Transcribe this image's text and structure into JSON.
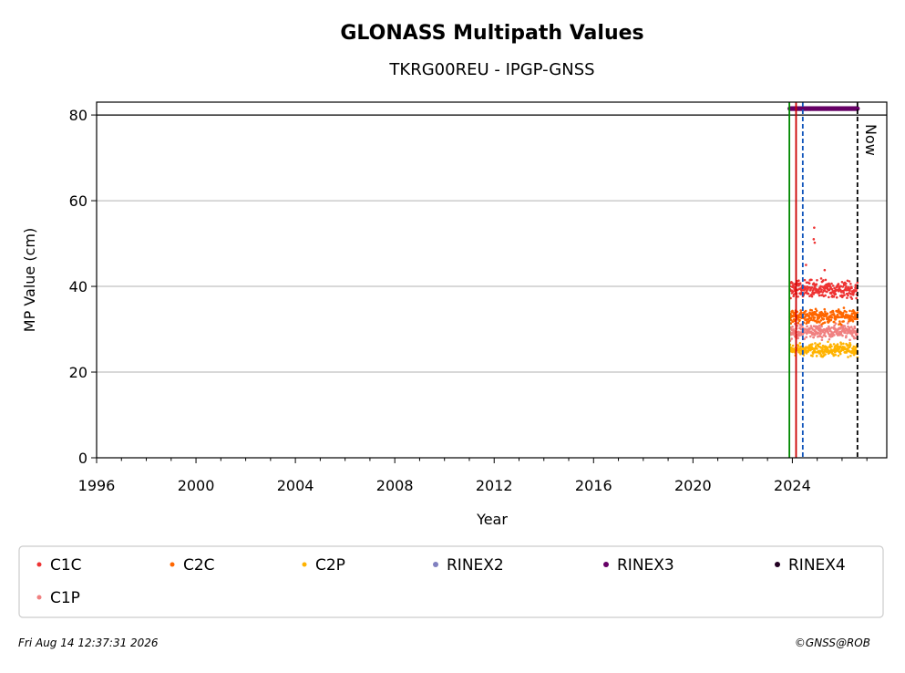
{
  "chart_data": {
    "type": "scatter",
    "title": "GLONASS Multipath Values",
    "subtitle": "TKRG00REU - IPGP-GNSS",
    "xlabel": "Year",
    "ylabel": "MP Value (cm)",
    "xlim": [
      1996,
      2027.8
    ],
    "ylim": [
      0,
      83
    ],
    "xticks": [
      "1996",
      "2000",
      "2004",
      "2008",
      "2012",
      "2016",
      "2020",
      "2024"
    ],
    "yticks": [
      "0",
      "20",
      "40",
      "60",
      "80"
    ],
    "grid": "horizontal",
    "date_range": [
      2023.9,
      2026.62
    ],
    "series": [
      {
        "name": "C1C",
        "color": "#ee3333",
        "marker": "x",
        "center": 39.2,
        "spread": 1.5,
        "outliers": [
          [
            2024.88,
            53.7
          ],
          [
            2024.86,
            51.0
          ],
          [
            2024.9,
            50.2
          ],
          [
            2024.55,
            45.0
          ],
          [
            2025.3,
            43.8
          ]
        ]
      },
      {
        "name": "C2C",
        "color": "#ff6600",
        "marker": "x",
        "center": 33.0,
        "spread": 1.1,
        "outliers": []
      },
      {
        "name": "C2P",
        "color": "#ffb300",
        "marker": "x",
        "center": 25.2,
        "spread": 1.0,
        "outliers": []
      },
      {
        "name": "RINEX2",
        "color": "#8080c0",
        "marker": "dot",
        "center": null,
        "spread": 0,
        "outliers": []
      },
      {
        "name": "RINEX3",
        "color": "#660066",
        "marker": "dot",
        "center": 81.5,
        "spread": 0,
        "outliers": []
      },
      {
        "name": "RINEX4",
        "color": "#220022",
        "marker": "dot",
        "center": null,
        "spread": 0,
        "outliers": []
      },
      {
        "name": "C1P",
        "color": "#f08080",
        "marker": "x",
        "center": 29.5,
        "spread": 1.1,
        "outliers": []
      }
    ],
    "reference_lines": [
      {
        "x": 2023.88,
        "color": "#008800",
        "style": "solid"
      },
      {
        "x": 2024.15,
        "color": "#cc0000",
        "style": "solid"
      },
      {
        "x": 2024.42,
        "color": "#1155bb",
        "style": "dashed"
      },
      {
        "x": 2026.62,
        "color": "#000000",
        "style": "dashed",
        "label": "Now"
      }
    ],
    "hline": 80,
    "legend_position": "below"
  },
  "footer": {
    "timestamp": "Fri Aug 14 12:37:31 2026",
    "credit": "©GNSS@ROB"
  }
}
